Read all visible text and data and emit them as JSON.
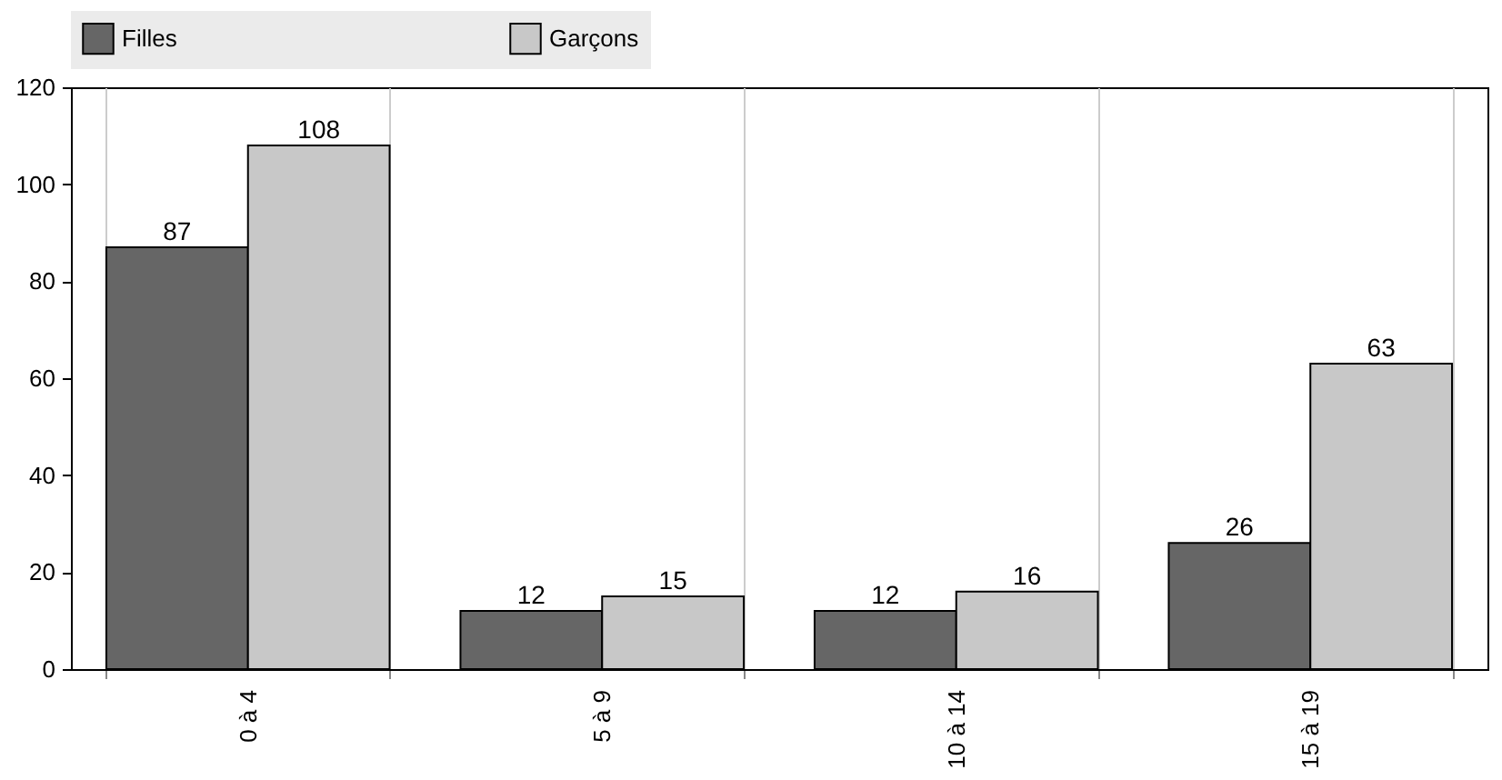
{
  "chart_data": {
    "type": "bar",
    "categories": [
      "0 à 4",
      "5 à 9",
      "10 à 14",
      "15 à 19"
    ],
    "series": [
      {
        "name": "Filles",
        "color": "#666666",
        "values": [
          87,
          12,
          12,
          26
        ]
      },
      {
        "name": "Garçons",
        "color": "#c8c8c8",
        "values": [
          108,
          15,
          16,
          63
        ]
      }
    ],
    "ylim": [
      0,
      120
    ],
    "yticks": [
      0,
      20,
      40,
      60,
      80,
      100,
      120
    ],
    "grid": "x",
    "legend": "top",
    "data_labels": true
  }
}
